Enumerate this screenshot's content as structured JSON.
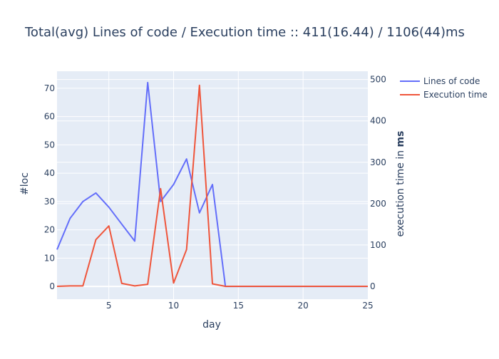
{
  "chart_data": {
    "type": "line",
    "title": "Total(avg) Lines of code / Execution time :: 411(16.44) / 1106(44)ms",
    "xlabel": "day",
    "ylabel_left": "#loc",
    "ylabel_right_prefix": "execution time in ",
    "ylabel_right_bold": "ms",
    "xlim": [
      1,
      25
    ],
    "ylim_left": [
      -4.5,
      76
    ],
    "ylim_right": [
      -31,
      520
    ],
    "x_ticks": [
      5,
      10,
      15,
      20,
      25
    ],
    "y_left_ticks": [
      0,
      10,
      20,
      30,
      40,
      50,
      60,
      70
    ],
    "y_right_ticks": [
      0,
      100,
      200,
      300,
      400,
      500
    ],
    "grid": true,
    "legend_position": "top-right",
    "colors": {
      "plot_bg": "#e5ecf6",
      "grid": "#ffffff",
      "text": "#2a3f5f",
      "lines_of_code": "#636efa",
      "execution_time": "#ef553b"
    },
    "series": [
      {
        "name": "Lines of code",
        "axis": "left",
        "x": [
          1,
          2,
          3,
          4,
          5,
          6,
          7,
          8,
          9,
          10,
          11,
          12,
          13,
          14,
          15,
          16,
          17,
          18,
          19,
          20,
          21,
          22,
          23,
          24,
          25
        ],
        "y": [
          13,
          24,
          30,
          33,
          28,
          22,
          16,
          72,
          30,
          36,
          45,
          26,
          36,
          0,
          0,
          0,
          0,
          0,
          0,
          0,
          0,
          0,
          0,
          0,
          0
        ]
      },
      {
        "name": "Execution time",
        "axis": "right",
        "x": [
          1,
          2,
          3,
          4,
          5,
          6,
          7,
          8,
          9,
          10,
          11,
          12,
          13,
          14,
          15,
          16,
          17,
          18,
          19,
          20,
          21,
          22,
          23,
          24,
          25
        ],
        "y": [
          0,
          1,
          1,
          113,
          146,
          7,
          1,
          5,
          236,
          8,
          89,
          486,
          6,
          0,
          0,
          0,
          0,
          0,
          0,
          0,
          0,
          0,
          0,
          0,
          0
        ]
      }
    ]
  }
}
